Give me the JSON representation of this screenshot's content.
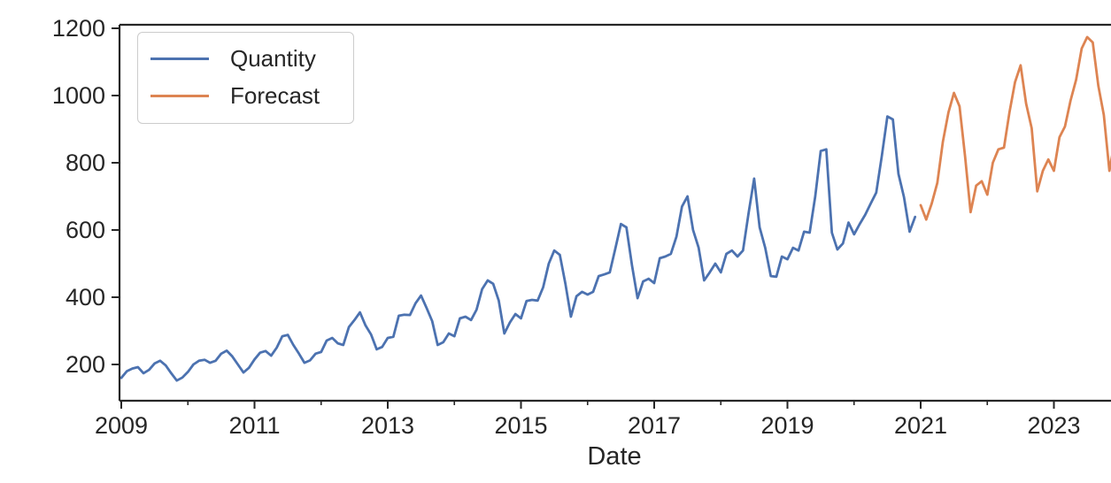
{
  "chart_data": {
    "type": "line",
    "title": "",
    "xlabel": "Date",
    "ylabel": "",
    "grid": false,
    "legend_position": "upper-left",
    "x_axis": {
      "major_ticks": [
        2009,
        2011,
        2013,
        2015,
        2017,
        2019,
        2021,
        2023
      ],
      "minor_ticks": [
        2010,
        2012,
        2014,
        2016,
        2018,
        2020,
        2022,
        2024
      ],
      "visible_range": [
        2008.97,
        2023.87
      ]
    },
    "y_axis": {
      "ticks": [
        200,
        400,
        600,
        800,
        1000,
        1200
      ],
      "range": [
        92,
        1210
      ]
    },
    "series": [
      {
        "name": "Quantity",
        "color": "#4c72b0",
        "start_year": 2009,
        "frequency": "monthly",
        "values": [
          160,
          180,
          188,
          192,
          174,
          184,
          203,
          211,
          197,
          174,
          152,
          161,
          178,
          200,
          211,
          214,
          205,
          211,
          232,
          241,
          224,
          200,
          176,
          190,
          215,
          235,
          240,
          226,
          250,
          284,
          288,
          258,
          232,
          205,
          212,
          232,
          237,
          271,
          279,
          263,
          258,
          311,
          332,
          355,
          316,
          289,
          245,
          252,
          279,
          282,
          345,
          348,
          347,
          382,
          405,
          368,
          329,
          258,
          266,
          292,
          284,
          337,
          342,
          332,
          363,
          424,
          450,
          440,
          390,
          292,
          325,
          350,
          337,
          389,
          392,
          390,
          430,
          500,
          539,
          526,
          440,
          342,
          403,
          416,
          408,
          416,
          463,
          468,
          474,
          545,
          618,
          608,
          495,
          397,
          447,
          455,
          442,
          516,
          521,
          529,
          580,
          670,
          700,
          600,
          547,
          450,
          474,
          500,
          474,
          529,
          539,
          521,
          539,
          650,
          753,
          608,
          547,
          463,
          461,
          521,
          513,
          547,
          539,
          595,
          592,
          700,
          835,
          840,
          592,
          542,
          560,
          622,
          587,
          617,
          645,
          679,
          711,
          820,
          938,
          929,
          767,
          697,
          595,
          639
        ]
      },
      {
        "name": "Forecast",
        "color": "#dd8452",
        "start_year": 2021,
        "frequency": "monthly",
        "values": [
          674,
          631,
          679,
          740,
          863,
          950,
          1008,
          968,
          818,
          653,
          732,
          745,
          705,
          800,
          840,
          845,
          950,
          1040,
          1090,
          976,
          903,
          715,
          776,
          810,
          776,
          876,
          908,
          985,
          1047,
          1140,
          1174,
          1158,
          1029,
          942,
          776,
          870
        ]
      }
    ]
  },
  "colors": {
    "axis": "#262626",
    "text": "#262626",
    "legend_border": "#cccccc",
    "background": "#ffffff"
  }
}
